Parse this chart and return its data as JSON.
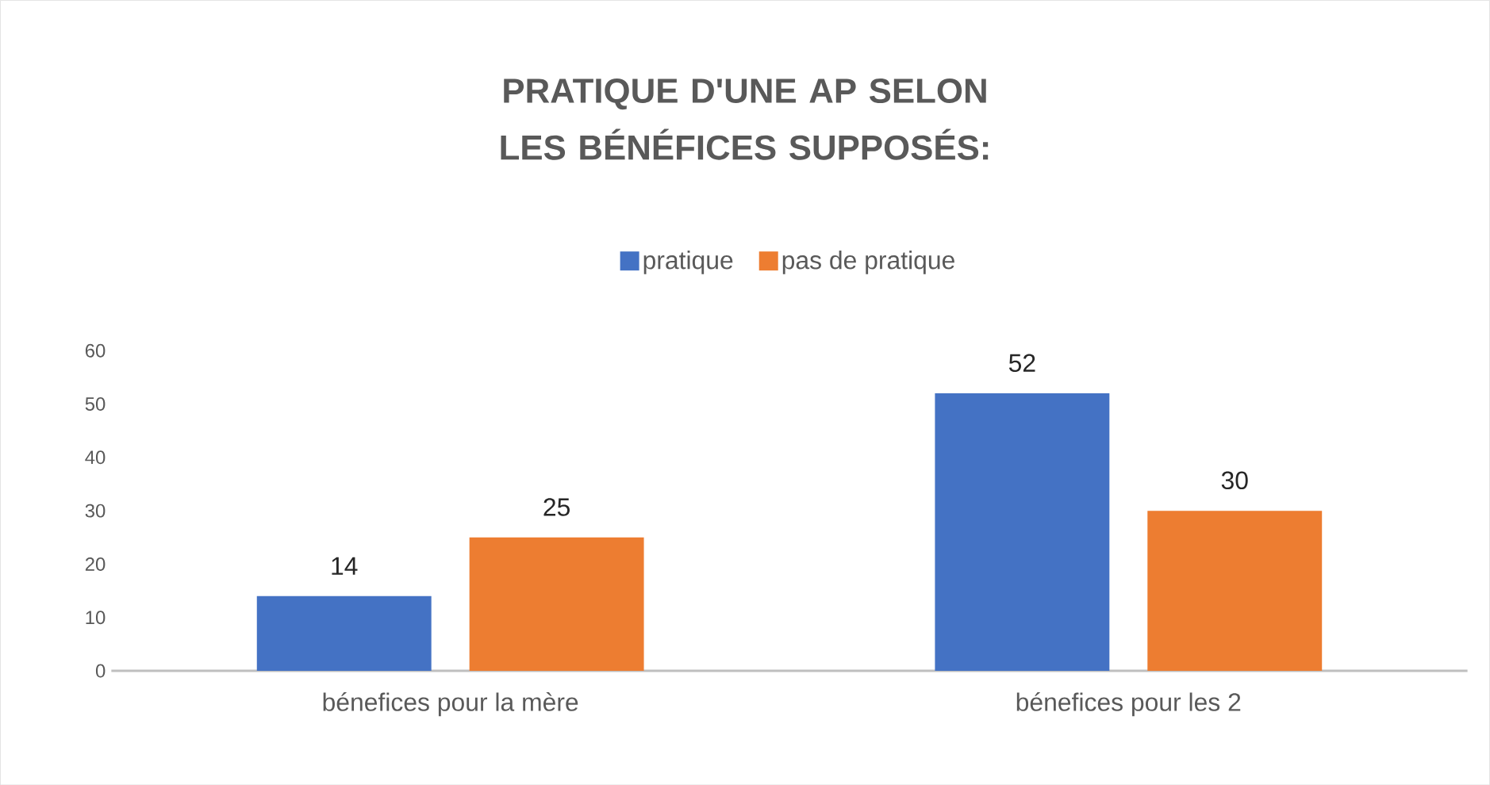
{
  "chart_data": {
    "type": "bar",
    "title": "PRATIQUE D'UNE AP SELON LES BÉNÉFICES SUPPOSÉS:",
    "categories": [
      "bénefices pour la mère",
      "bénefices pour les 2"
    ],
    "series": [
      {
        "name": "pratique",
        "color": "#4472c4",
        "values": [
          14,
          52
        ]
      },
      {
        "name": "pas de pratique",
        "color": "#ed7d31",
        "values": [
          25,
          30
        ]
      }
    ],
    "ylim": [
      0,
      60
    ],
    "yticks": [
      0,
      10,
      20,
      30,
      40,
      50,
      60
    ],
    "data_labels": true,
    "legend": "top",
    "grid": false
  }
}
